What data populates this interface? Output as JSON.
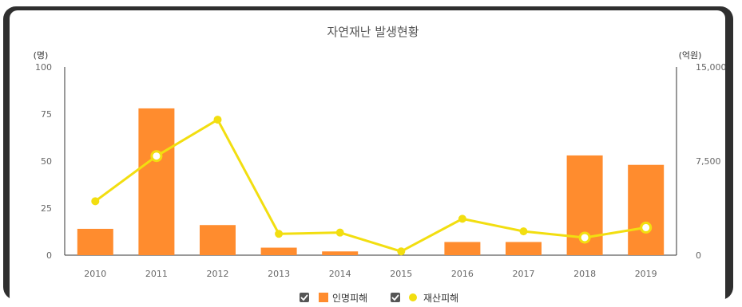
{
  "chart_data": {
    "type": "bar",
    "title": "자연재난 발생현황",
    "categories": [
      "2010",
      "2011",
      "2012",
      "2013",
      "2014",
      "2015",
      "2016",
      "2017",
      "2018",
      "2019"
    ],
    "series": [
      {
        "name": "인명피해",
        "type": "bar",
        "axis": "left",
        "color": "#FF8C2E",
        "values": [
          14,
          78,
          16,
          4,
          2,
          0,
          7,
          7,
          53,
          48
        ]
      },
      {
        "name": "재산피해",
        "type": "line",
        "axis": "right",
        "color": "#F2DE10",
        "values": [
          4300,
          7900,
          10800,
          1700,
          1800,
          300,
          2900,
          1900,
          1400,
          2200
        ]
      }
    ],
    "y_left": {
      "unit": "(명)",
      "ylim": [
        0,
        100
      ],
      "ticks": [
        "0",
        "25",
        "50",
        "75",
        "100"
      ]
    },
    "y_right": {
      "unit": "(억원)",
      "ylim": [
        0,
        15000
      ],
      "ticks": [
        "0",
        "7,500",
        "15,000"
      ]
    },
    "legend_position": "bottom-center",
    "grid": false
  }
}
